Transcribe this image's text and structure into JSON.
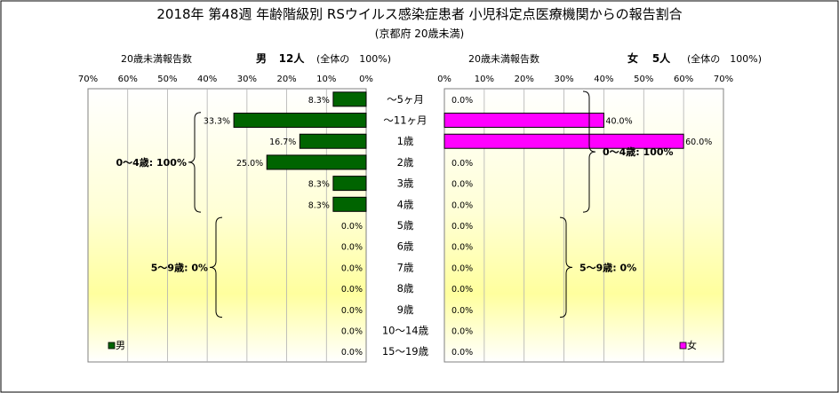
{
  "chart_data": {
    "type": "bar",
    "title": "2018年 第48週 年齢階級別 RSウイルス感染症患者 小児科定点医療機関からの報告割合",
    "subtitle": "(京都府 20歳未満)",
    "categories": [
      "～5ヶ月",
      "～11ヶ月",
      "1歳",
      "2歳",
      "3歳",
      "4歳",
      "5歳",
      "6歳",
      "7歳",
      "8歳",
      "9歳",
      "10～14歳",
      "15～19歳"
    ],
    "series": [
      {
        "name": "男",
        "side": "left",
        "color": "#006400",
        "header_label": "20歳未満報告数",
        "header_sex": "男",
        "header_count": "12人",
        "header_total": "(全体の　100%)",
        "values": [
          8.3,
          33.3,
          16.7,
          25.0,
          8.3,
          8.3,
          0.0,
          0.0,
          0.0,
          0.0,
          0.0,
          0.0,
          0.0
        ],
        "labels": [
          "8.3%",
          "33.3%",
          "16.7%",
          "25.0%",
          "8.3%",
          "8.3%",
          "0.0%",
          "0.0%",
          "0.0%",
          "0.0%",
          "0.0%",
          "0.0%",
          "0.0%"
        ],
        "annotations": [
          {
            "text": "0～4歳: 100%",
            "from": 1,
            "to": 5
          },
          {
            "text": "5～9歳: 0%",
            "from": 6,
            "to": 10
          }
        ]
      },
      {
        "name": "女",
        "side": "right",
        "color": "#ff00ff",
        "header_label": "20歳未満報告数",
        "header_sex": "女",
        "header_count": "5人",
        "header_total": "(全体の　100%)",
        "values": [
          0.0,
          40.0,
          60.0,
          0.0,
          0.0,
          0.0,
          0.0,
          0.0,
          0.0,
          0.0,
          0.0,
          0.0,
          0.0
        ],
        "labels": [
          "0.0%",
          "40.0%",
          "60.0%",
          "0.0%",
          "0.0%",
          "0.0%",
          "0.0%",
          "0.0%",
          "0.0%",
          "0.0%",
          "0.0%",
          "0.0%",
          "0.0%"
        ],
        "annotations": [
          {
            "text": "0～4歳: 100%",
            "from": 0,
            "to": 5
          },
          {
            "text": "5～9歳: 0%",
            "from": 6,
            "to": 10
          }
        ]
      }
    ],
    "xlim": [
      0,
      70
    ],
    "x_ticks": [
      "0%",
      "10%",
      "20%",
      "30%",
      "40%",
      "50%",
      "60%",
      "70%"
    ],
    "grid": true,
    "legend": "bottom-corner"
  }
}
